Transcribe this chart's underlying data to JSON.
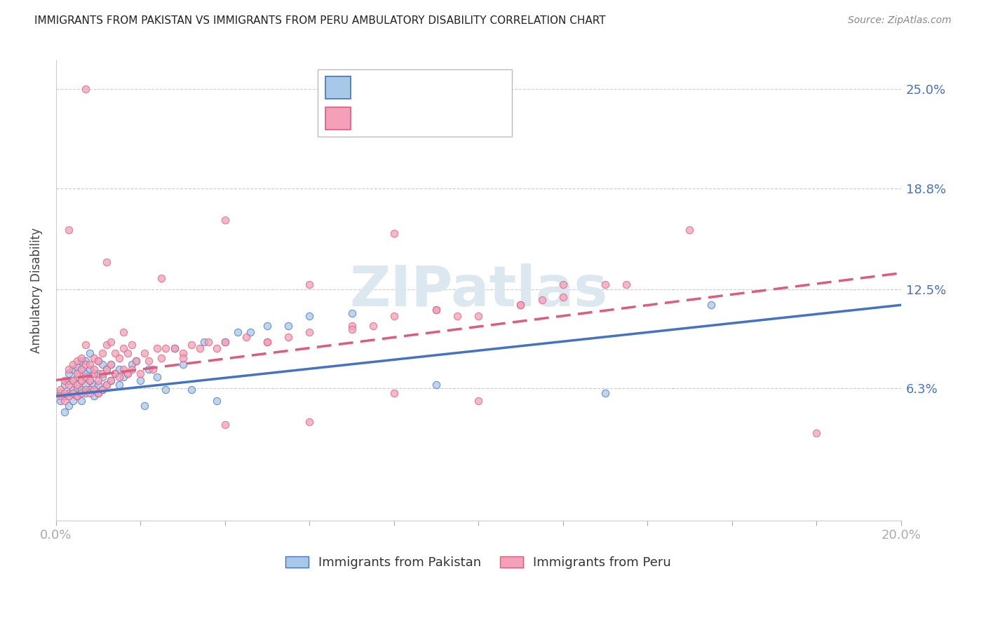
{
  "title": "IMMIGRANTS FROM PAKISTAN VS IMMIGRANTS FROM PERU AMBULATORY DISABILITY CORRELATION CHART",
  "source": "Source: ZipAtlas.com",
  "ylabel": "Ambulatory Disability",
  "ytick_labels": [
    "6.3%",
    "12.5%",
    "18.8%",
    "25.0%"
  ],
  "ytick_values": [
    0.063,
    0.125,
    0.188,
    0.25
  ],
  "xlim": [
    0.0,
    0.2
  ],
  "ylim": [
    -0.02,
    0.268
  ],
  "color_pakistan": "#a8c8e8",
  "color_peru": "#f4a0b8",
  "trendline_color_pakistan": "#4472c4",
  "trendline_color_peru": "#e05a7a",
  "watermark": "ZIPatlas",
  "pak_trend_x0": 0.0,
  "pak_trend_y0": 0.058,
  "pak_trend_x1": 0.2,
  "pak_trend_y1": 0.115,
  "peru_trend_x0": 0.0,
  "peru_trend_y0": 0.068,
  "peru_trend_x1": 0.2,
  "peru_trend_y1": 0.135,
  "pakistan_x": [
    0.001,
    0.001,
    0.002,
    0.002,
    0.002,
    0.003,
    0.003,
    0.003,
    0.003,
    0.004,
    0.004,
    0.004,
    0.004,
    0.005,
    0.005,
    0.005,
    0.005,
    0.006,
    0.006,
    0.006,
    0.006,
    0.006,
    0.007,
    0.007,
    0.007,
    0.007,
    0.008,
    0.008,
    0.008,
    0.008,
    0.009,
    0.009,
    0.009,
    0.01,
    0.01,
    0.01,
    0.01,
    0.011,
    0.011,
    0.011,
    0.012,
    0.012,
    0.013,
    0.013,
    0.014,
    0.015,
    0.015,
    0.016,
    0.017,
    0.018,
    0.019,
    0.02,
    0.021,
    0.022,
    0.024,
    0.026,
    0.028,
    0.03,
    0.032,
    0.035,
    0.038,
    0.04,
    0.043,
    0.046,
    0.05,
    0.055,
    0.06,
    0.07,
    0.09,
    0.13,
    0.155
  ],
  "pakistan_y": [
    0.055,
    0.06,
    0.048,
    0.058,
    0.065,
    0.052,
    0.06,
    0.068,
    0.072,
    0.055,
    0.062,
    0.068,
    0.075,
    0.058,
    0.063,
    0.07,
    0.076,
    0.055,
    0.062,
    0.068,
    0.075,
    0.08,
    0.06,
    0.065,
    0.072,
    0.08,
    0.062,
    0.068,
    0.075,
    0.085,
    0.058,
    0.065,
    0.072,
    0.06,
    0.065,
    0.072,
    0.08,
    0.062,
    0.07,
    0.078,
    0.065,
    0.075,
    0.068,
    0.078,
    0.072,
    0.065,
    0.075,
    0.07,
    0.072,
    0.078,
    0.08,
    0.068,
    0.052,
    0.075,
    0.07,
    0.062,
    0.088,
    0.078,
    0.062,
    0.092,
    0.055,
    0.092,
    0.098,
    0.098,
    0.102,
    0.102,
    0.108,
    0.11,
    0.065,
    0.06,
    0.115
  ],
  "peru_x": [
    0.001,
    0.001,
    0.002,
    0.002,
    0.002,
    0.003,
    0.003,
    0.003,
    0.004,
    0.004,
    0.004,
    0.005,
    0.005,
    0.005,
    0.005,
    0.006,
    0.006,
    0.006,
    0.006,
    0.007,
    0.007,
    0.007,
    0.007,
    0.008,
    0.008,
    0.008,
    0.009,
    0.009,
    0.009,
    0.01,
    0.01,
    0.01,
    0.011,
    0.011,
    0.011,
    0.012,
    0.012,
    0.012,
    0.013,
    0.013,
    0.013,
    0.014,
    0.014,
    0.015,
    0.015,
    0.016,
    0.016,
    0.017,
    0.017,
    0.018,
    0.018,
    0.019,
    0.02,
    0.021,
    0.022,
    0.023,
    0.024,
    0.025,
    0.026,
    0.028,
    0.03,
    0.032,
    0.034,
    0.036,
    0.04,
    0.045,
    0.05,
    0.06,
    0.07,
    0.08,
    0.09,
    0.1,
    0.11,
    0.12,
    0.038,
    0.055,
    0.075,
    0.095,
    0.115,
    0.135,
    0.03,
    0.05,
    0.07,
    0.09,
    0.11,
    0.13,
    0.15,
    0.009,
    0.016,
    0.025,
    0.04,
    0.06,
    0.08,
    0.04,
    0.06,
    0.08,
    0.1,
    0.12,
    0.003,
    0.007,
    0.012,
    0.18
  ],
  "peru_y": [
    0.058,
    0.062,
    0.055,
    0.06,
    0.068,
    0.058,
    0.065,
    0.075,
    0.06,
    0.068,
    0.078,
    0.058,
    0.065,
    0.072,
    0.08,
    0.06,
    0.068,
    0.075,
    0.082,
    0.062,
    0.07,
    0.078,
    0.09,
    0.06,
    0.068,
    0.078,
    0.062,
    0.072,
    0.082,
    0.06,
    0.068,
    0.08,
    0.062,
    0.072,
    0.085,
    0.065,
    0.075,
    0.09,
    0.068,
    0.078,
    0.092,
    0.072,
    0.085,
    0.07,
    0.082,
    0.075,
    0.088,
    0.072,
    0.085,
    0.075,
    0.09,
    0.08,
    0.072,
    0.085,
    0.08,
    0.075,
    0.088,
    0.082,
    0.088,
    0.088,
    0.085,
    0.09,
    0.088,
    0.092,
    0.092,
    0.095,
    0.092,
    0.098,
    0.102,
    0.108,
    0.112,
    0.108,
    0.115,
    0.12,
    0.088,
    0.095,
    0.102,
    0.108,
    0.118,
    0.128,
    0.082,
    0.092,
    0.1,
    0.112,
    0.115,
    0.128,
    0.162,
    0.075,
    0.098,
    0.132,
    0.04,
    0.042,
    0.06,
    0.168,
    0.128,
    0.16,
    0.055,
    0.128,
    0.162,
    0.25,
    0.142,
    0.035
  ]
}
